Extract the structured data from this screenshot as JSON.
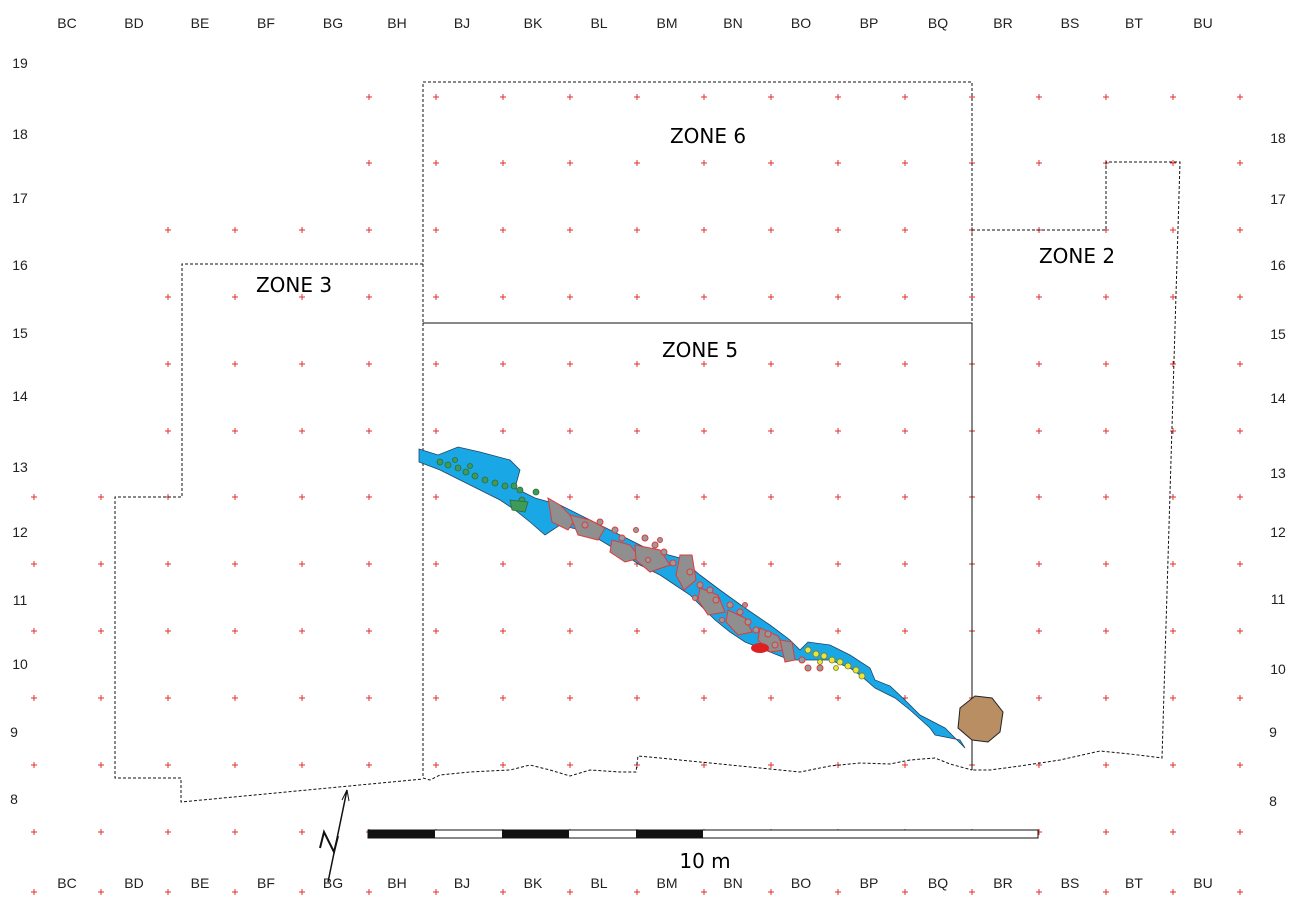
{
  "grid": {
    "columns": [
      "BC",
      "BD",
      "BE",
      "BF",
      "BG",
      "BH",
      "BJ",
      "BK",
      "BL",
      "BM",
      "BN",
      "BO",
      "BP",
      "BQ",
      "BR",
      "BS",
      "BT",
      "BU"
    ],
    "rows_left": [
      "19",
      "18",
      "17",
      "16",
      "15",
      "14",
      "13",
      "12",
      "11",
      "10",
      "9",
      "8"
    ],
    "rows_right": [
      "18",
      "17",
      "16",
      "15",
      "14",
      "13",
      "12",
      "11",
      "10",
      "9",
      "8"
    ]
  },
  "zones": {
    "zone6": "ZONE 6",
    "zone5": "ZONE 5",
    "zone3": "ZONE 3",
    "zone2": "ZONE 2"
  },
  "scale": {
    "label": "10 m"
  },
  "colors": {
    "grid_cross": "#e03030",
    "water": "#1aa7e6",
    "stones_gray": "#8f8f8f",
    "stones_outline": "#e03a3a",
    "green_finds": "#3f9a5a",
    "yellow_finds": "#e8e63a",
    "brown_pit": "#b88e62"
  }
}
